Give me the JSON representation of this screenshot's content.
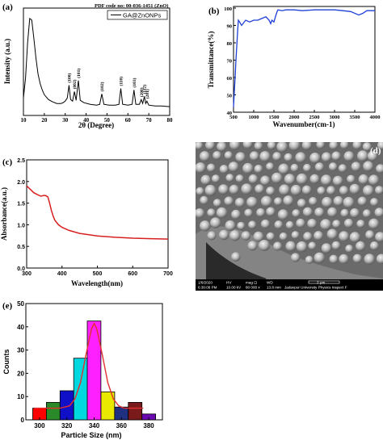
{
  "chart_data": [
    {
      "panel": "(a)",
      "type": "line",
      "annotation": "PDF code no: 00-036-1451 (ZnO)",
      "xlabel": "2θ (Degree)",
      "ylabel": "Intensity (a.u.)",
      "xlim": [
        10,
        80
      ],
      "xticks": [
        "10",
        "20",
        "30",
        "40",
        "50",
        "60",
        "70",
        "80"
      ],
      "legend": "GA@ZnONPs",
      "legend_position": "top-right",
      "color": "#000000",
      "peak_labels": [
        {
          "label": "(100)",
          "x": 31.8
        },
        {
          "label": "(002)",
          "x": 34.4
        },
        {
          "label": "(101)",
          "x": 36.3
        },
        {
          "label": "(102)",
          "x": 47.5
        },
        {
          "label": "(110)",
          "x": 56.6
        },
        {
          "label": "(103)",
          "x": 62.9
        },
        {
          "label": "(200)",
          "x": 66.4
        },
        {
          "label": "(112)",
          "x": 67.9
        },
        {
          "label": "(201)",
          "x": 69.1
        }
      ],
      "series": [
        {
          "x": [
            10,
            11,
            12,
            13,
            14,
            15,
            16,
            17,
            18,
            19,
            20,
            22,
            24,
            26,
            28,
            29,
            30,
            31,
            31.8,
            32.6,
            33.5,
            34.4,
            35.2,
            36.3,
            37.2,
            39,
            42,
            45,
            46.5,
            47.5,
            48.5,
            51,
            54,
            55.7,
            56.6,
            57.5,
            60,
            62,
            62.9,
            63.8,
            65.5,
            66.4,
            67.1,
            67.9,
            68.5,
            69.1,
            70,
            73,
            76,
            80
          ],
          "y": [
            20,
            45,
            90,
            120,
            118,
            95,
            70,
            50,
            38,
            30,
            24,
            18,
            15,
            13,
            13,
            14,
            16,
            20,
            36,
            18,
            16,
            28,
            17,
            42,
            17,
            14,
            12,
            11,
            12,
            25,
            12,
            11,
            11,
            12,
            32,
            12,
            11,
            12,
            30,
            12,
            12,
            18,
            13,
            22,
            13,
            16,
            11,
            10,
            10,
            9
          ]
        }
      ]
    },
    {
      "panel": "(b)",
      "type": "line",
      "xlabel": "Wavenumber(cm-1)",
      "ylabel": "Transmittance(%)",
      "xlim": [
        500,
        4000
      ],
      "ylim": [
        40,
        100
      ],
      "xticks": [
        "500",
        "1000",
        "1500",
        "2000",
        "2500",
        "3000",
        "3500",
        "4000"
      ],
      "yticks": [
        "40",
        "50",
        "60",
        "70",
        "80",
        "90",
        "100"
      ],
      "color": "#1f3fd6",
      "series": [
        {
          "x": [
            500,
            520,
            540,
            560,
            580,
            600,
            620,
            650,
            700,
            800,
            900,
            1000,
            1100,
            1200,
            1300,
            1380,
            1420,
            1450,
            1500,
            1550,
            1580,
            1600,
            1700,
            1800,
            2000,
            2200,
            2500,
            3000,
            3200,
            3400,
            3600,
            3700,
            3800,
            4000
          ],
          "y": [
            43,
            52,
            60,
            70,
            78,
            86,
            93,
            92,
            90,
            93,
            92,
            93,
            93,
            94,
            95,
            93,
            91,
            93,
            92,
            96,
            98,
            99,
            98.5,
            99,
            99,
            98.5,
            99,
            99,
            98.5,
            98,
            96,
            97,
            98.5,
            98.5
          ]
        }
      ]
    },
    {
      "panel": "(c)",
      "type": "line",
      "xlabel": "Wavelength(nm)",
      "ylabel": "Absorbance(a.u.)",
      "xlim": [
        300,
        700
      ],
      "ylim": [
        0,
        2.5
      ],
      "xticks": [
        "300",
        "400",
        "500",
        "600",
        "700"
      ],
      "yticks": [
        "0.0",
        "0.5",
        "1.0",
        "1.5",
        "2.0",
        "2.5"
      ],
      "color": "#d62020",
      "series": [
        {
          "x": [
            300,
            310,
            320,
            330,
            340,
            350,
            355,
            360,
            365,
            370,
            375,
            380,
            390,
            400,
            420,
            450,
            500,
            550,
            600,
            650,
            700
          ],
          "y": [
            1.9,
            1.82,
            1.74,
            1.7,
            1.66,
            1.68,
            1.67,
            1.64,
            1.5,
            1.33,
            1.2,
            1.1,
            1.0,
            0.94,
            0.87,
            0.8,
            0.74,
            0.71,
            0.69,
            0.68,
            0.67
          ]
        }
      ]
    },
    {
      "panel": "(d)",
      "type": "image",
      "description": "SEM micrograph",
      "info_bar": {
        "row1": [
          "1/6/2020",
          "HV",
          "mag ⊡",
          "WD",
          "2 μm"
        ],
        "row2": [
          "6:30:08 PM",
          "10.00 kV",
          "80 000 x",
          "13.8 mm",
          "Jadavpur University Physics Inspect F"
        ]
      }
    },
    {
      "panel": "(e)",
      "type": "bar",
      "xlabel": "Particle Size (nm)",
      "ylabel": "Counts",
      "xlim": [
        290,
        390
      ],
      "ylim": [
        0,
        50
      ],
      "xticks": [
        "300",
        "320",
        "340",
        "360",
        "380"
      ],
      "yticks": [
        "0",
        "10",
        "20",
        "30",
        "40",
        "50"
      ],
      "bars": [
        {
          "x": 300,
          "value": 5,
          "color": "#ff0000"
        },
        {
          "x": 310,
          "value": 7.5,
          "color": "#2a8a2a"
        },
        {
          "x": 320,
          "value": 12.5,
          "color": "#1010c8"
        },
        {
          "x": 330,
          "value": 26.5,
          "color": "#00d8e0"
        },
        {
          "x": 340,
          "value": 42.5,
          "color": "#ff20ff"
        },
        {
          "x": 350,
          "value": 12,
          "color": "#e8e800"
        },
        {
          "x": 360,
          "value": 5.5,
          "color": "#203080"
        },
        {
          "x": 370,
          "value": 7.5,
          "color": "#7a1a1a"
        },
        {
          "x": 380,
          "value": 2.5,
          "color": "#6a0ab0"
        }
      ],
      "fit": {
        "color": "#e03030",
        "x": [
          296,
          305,
          315,
          322,
          326,
          330,
          334,
          338,
          340,
          342,
          346,
          350,
          354,
          358,
          362,
          370,
          376
        ],
        "y": [
          5,
          5,
          5,
          6,
          9,
          16,
          28,
          39,
          41.5,
          39,
          28,
          16,
          9,
          6,
          5,
          5,
          5
        ]
      }
    }
  ]
}
